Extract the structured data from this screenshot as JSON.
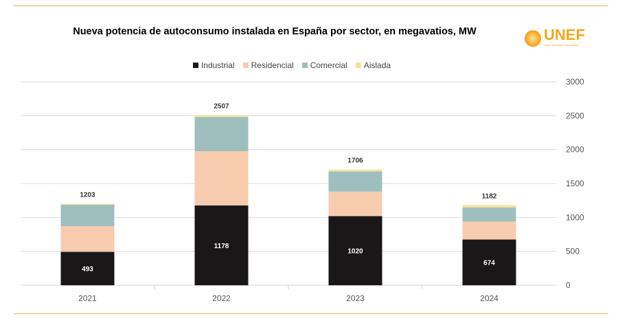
{
  "chart_data": {
    "type": "bar",
    "stacked": true,
    "title": "Nueva potencia de autoconsumo instalada en España por sector, en megavatios, MW",
    "categories": [
      "2021",
      "2022",
      "2023",
      "2024"
    ],
    "series": [
      {
        "name": "Industrial",
        "color": "#1a1718",
        "values": [
          493,
          1178,
          1020,
          674
        ]
      },
      {
        "name": "Residencial",
        "color": "#f7cbad",
        "values": [
          378,
          798,
          361,
          265
        ]
      },
      {
        "name": "Comercial",
        "color": "#9fbfbf",
        "values": [
          317,
          506,
          298,
          209
        ]
      },
      {
        "name": "Aislada",
        "color": "#f7e19a",
        "values": [
          15,
          25,
          27,
          34
        ]
      }
    ],
    "totals": [
      1203,
      2507,
      1706,
      1182
    ],
    "industrial_labels": [
      "493",
      "1178",
      "1020",
      "674"
    ],
    "ylim": [
      0,
      3000
    ],
    "yticks": [
      0,
      500,
      1000,
      1500,
      2000,
      2500,
      3000
    ],
    "yaxis_position": "right",
    "grid": true,
    "legend": "top"
  },
  "logo": {
    "text": "UNEF",
    "subtitle": "Unión Española Fotovoltaica"
  }
}
